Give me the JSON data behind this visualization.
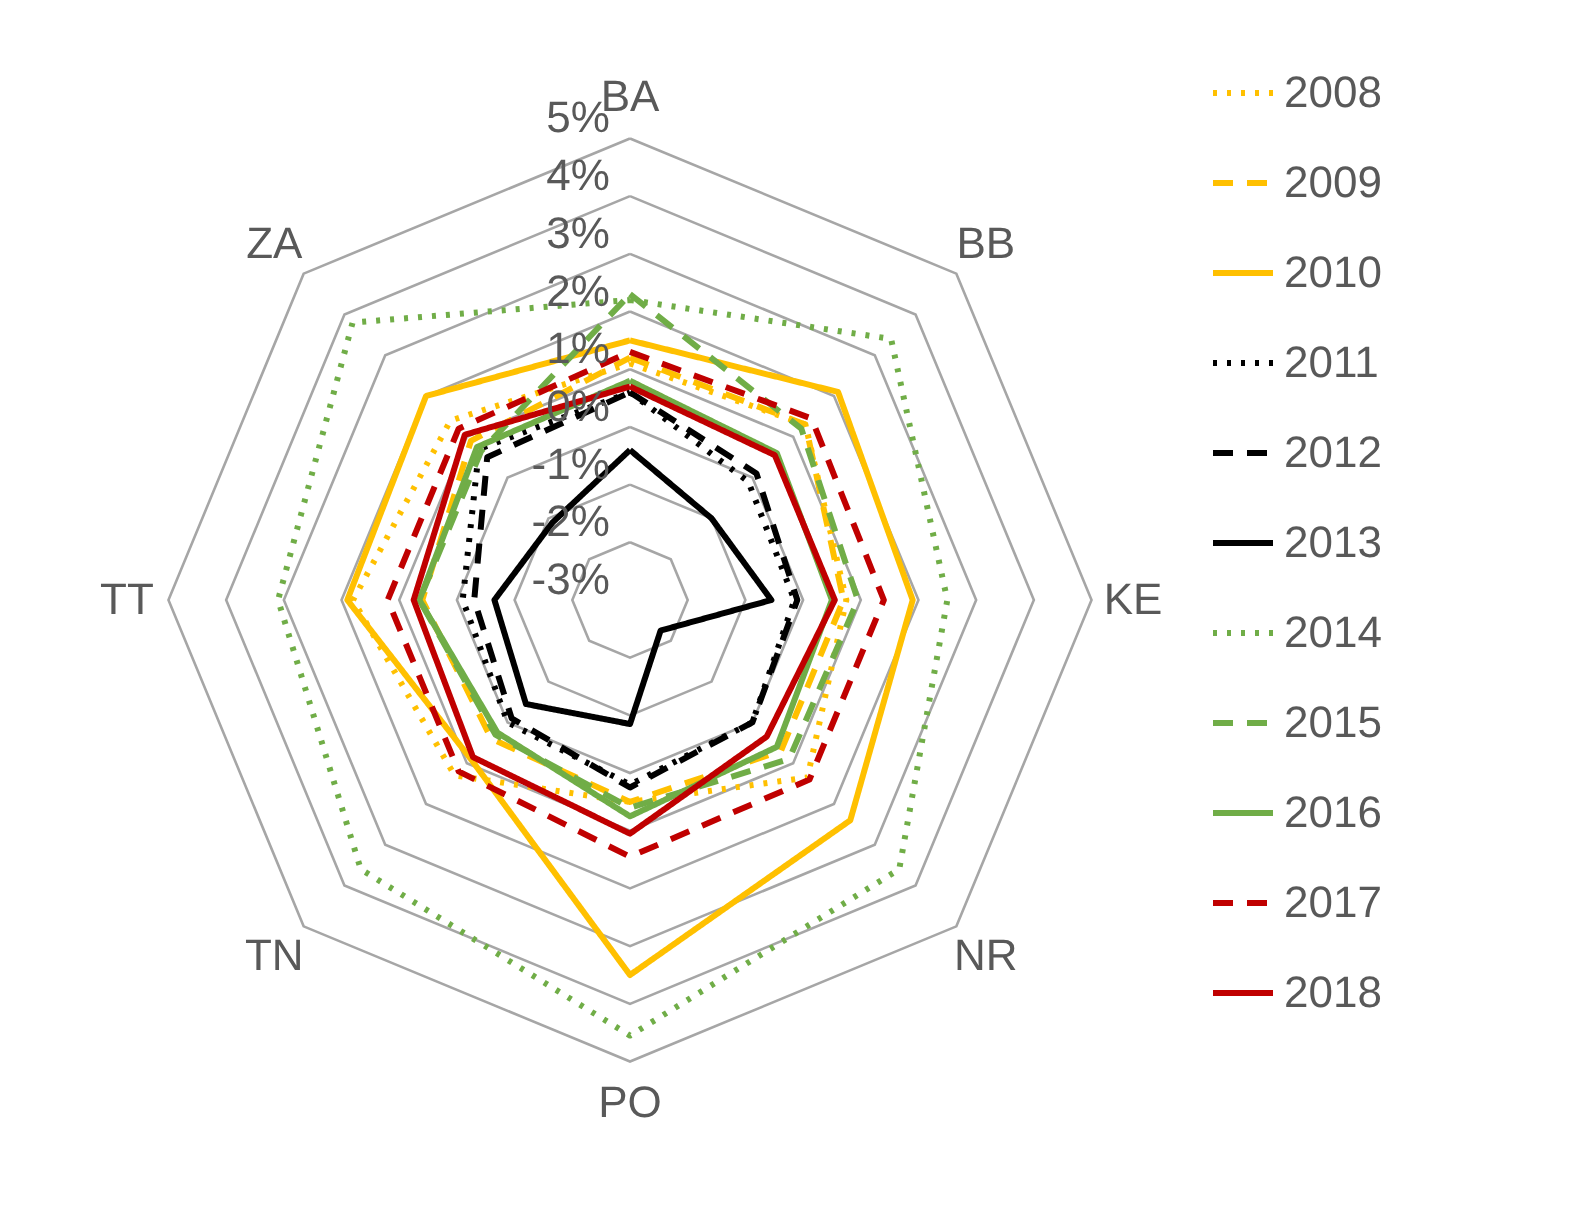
{
  "chart_data": {
    "type": "radar",
    "categories": [
      "BA",
      "BB",
      "KE",
      "NR",
      "PO",
      "TN",
      "TT",
      "ZA"
    ],
    "ylim": [
      -3,
      5
    ],
    "yticks": [
      {
        "value": -3,
        "label": "-3%"
      },
      {
        "value": -2,
        "label": "-2%"
      },
      {
        "value": -1,
        "label": "-1%"
      },
      {
        "value": 0,
        "label": "0%"
      },
      {
        "value": 1,
        "label": "1%"
      },
      {
        "value": 2,
        "label": "2%"
      },
      {
        "value": 3,
        "label": "3%"
      },
      {
        "value": 4,
        "label": "4%"
      },
      {
        "value": 5,
        "label": "5%"
      }
    ],
    "grid": true,
    "legend": "right",
    "series": [
      {
        "name": "2008",
        "color": "#ffc000",
        "line_style": "dotted",
        "values": [
          1.1,
          1.3,
          0.75,
          1.35,
          0.5,
          1.3,
          1.8,
          1.4
        ]
      },
      {
        "name": "2009",
        "color": "#ffc000",
        "line_style": "dashed",
        "values": [
          1.2,
          1.3,
          0.7,
          0.7,
          0.5,
          0.4,
          0.6,
          0.9
        ]
      },
      {
        "name": "2010",
        "color": "#ffc000",
        "line_style": "solid",
        "values": [
          1.5,
          2.1,
          1.9,
          2.4,
          3.5,
          0.9,
          1.9,
          2.0
        ]
      },
      {
        "name": "2011",
        "color": "#000000",
        "line_style": "dotted",
        "values": [
          0.6,
          -0.1,
          -0.15,
          0.0,
          0.2,
          0.0,
          -0.1,
          0.7
        ]
      },
      {
        "name": "2012",
        "color": "#000000",
        "line_style": "dashed",
        "values": [
          0.6,
          0.1,
          -0.1,
          0.0,
          0.25,
          -0.1,
          -0.3,
          0.5
        ]
      },
      {
        "name": "2013",
        "color": "#000000",
        "line_style": "solid",
        "values": [
          -0.4,
          -1.0,
          -0.55,
          -2.25,
          -0.85,
          -0.45,
          -0.65,
          -1.1
        ]
      },
      {
        "name": "2014",
        "color": "#70ad47",
        "line_style": "dotted",
        "values": [
          2.2,
          3.4,
          2.5,
          3.6,
          4.55,
          3.6,
          3.1,
          3.8
        ]
      },
      {
        "name": "2015",
        "color": "#70ad47",
        "line_style": "dashed",
        "values": [
          2.3,
          1.2,
          0.95,
          0.9,
          0.6,
          0.3,
          0.65,
          0.65
        ]
      },
      {
        "name": "2016",
        "color": "#70ad47",
        "line_style": "solid",
        "values": [
          0.8,
          0.6,
          0.5,
          0.6,
          0.75,
          0.25,
          0.65,
          0.75
        ]
      },
      {
        "name": "2017",
        "color": "#c00000",
        "line_style": "dashed",
        "values": [
          1.3,
          1.45,
          1.4,
          1.4,
          1.45,
          1.2,
          1.2,
          1.2
        ]
      },
      {
        "name": "2018",
        "color": "#c00000",
        "line_style": "solid",
        "values": [
          0.7,
          0.55,
          0.55,
          0.35,
          1.05,
          0.85,
          0.75,
          1.05
        ]
      }
    ]
  }
}
